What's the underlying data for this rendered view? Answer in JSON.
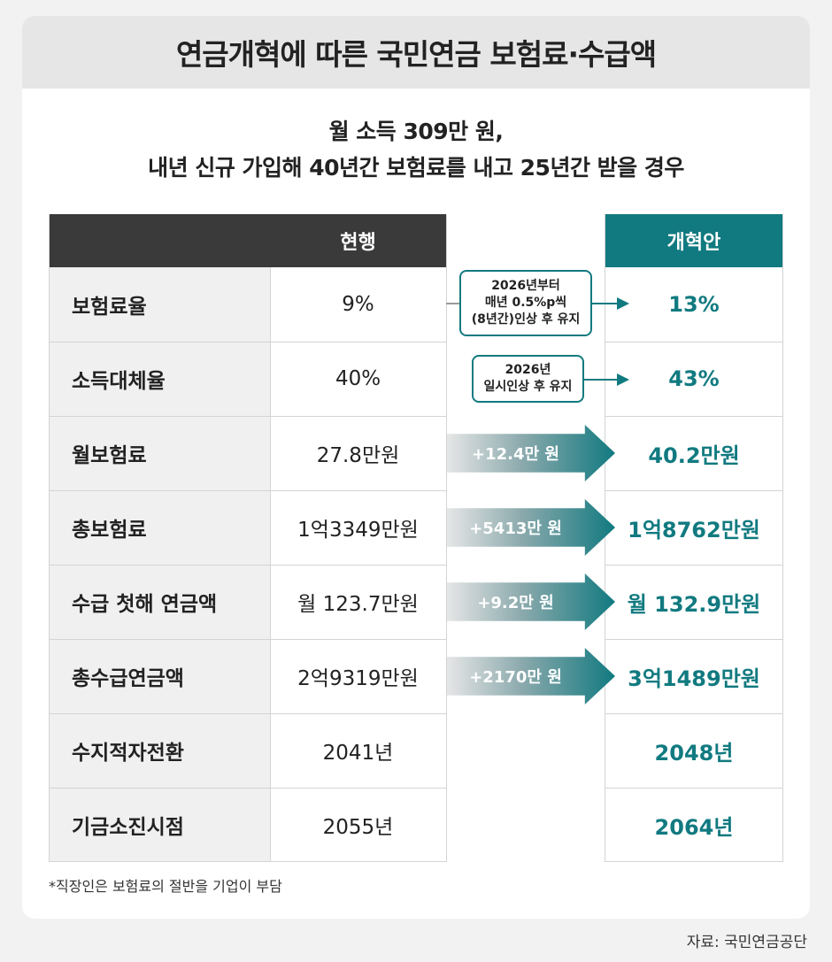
{
  "title": "연금개혁에 따른 국민연금 보험료·수급액",
  "subtitle": {
    "line1": "월 소득 309만 원,",
    "line2": "내년 신규 가입해 40년간 보험료를 내고 25년간 받을 경우"
  },
  "table": {
    "header_current": "현행",
    "header_reform": "개혁안",
    "rows": [
      {
        "label": "보험료율",
        "current": "9%",
        "reform": "13%"
      },
      {
        "label": "소득대체율",
        "current": "40%",
        "reform": "43%"
      },
      {
        "label": "월보험료",
        "current": "27.8만원",
        "reform": "40.2만원"
      },
      {
        "label": "총보험료",
        "current": "1억3349만원",
        "reform": "1억8762만원"
      },
      {
        "label": "수급 첫해 연금액",
        "current": "월 123.7만원",
        "reform": "월 132.9만원"
      },
      {
        "label": "총수급연금액",
        "current": "2억9319만원",
        "reform": "3억1489만원"
      },
      {
        "label": "수지적자전환",
        "current": "2041년",
        "reform": "2048년"
      },
      {
        "label": "기금소진시점",
        "current": "2055년",
        "reform": "2064년"
      }
    ]
  },
  "notes": {
    "rate_change": [
      "2026년부터",
      "매년 0.5%p씩",
      "(8년간)인상 후 유지"
    ],
    "replacement_change": [
      "2026년",
      "일시인상 후 유지"
    ]
  },
  "increases": {
    "monthly_premium": "+12.4만 원",
    "total_premium": "+5413만 원",
    "first_year_pension": "+9.2만 원",
    "total_pension": "+2170만 원"
  },
  "footnote": "*직장인은 보험료의 절반을 기업이 부담",
  "source": "자료: 국민연금공단",
  "colors": {
    "accent": "#117a80",
    "header_dark": "#3a3a3a",
    "title_bg": "#e6e6e6"
  }
}
